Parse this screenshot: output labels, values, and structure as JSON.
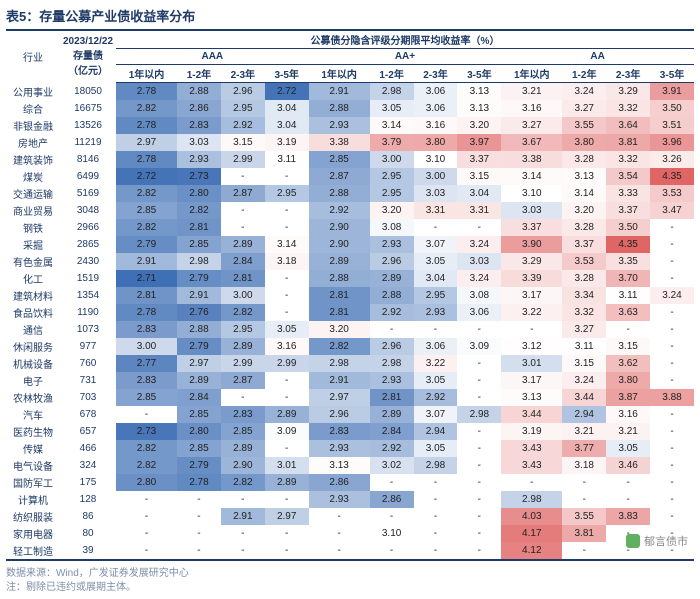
{
  "title": "表5：存量公募产业债收益率分布",
  "header": {
    "industry": "行业",
    "amount_line1": "2023/12/22",
    "amount_line2": "存量债",
    "amount_line3": "（亿元）",
    "main": "公募债分隐含评级分期限平均收益率（%）",
    "groups": [
      "AAA",
      "AA+",
      "AA"
    ],
    "periods": [
      "1年以内",
      "1-2年",
      "2-3年",
      "3-5年"
    ]
  },
  "rows": [
    {
      "ind": "公用事业",
      "amt": "18050",
      "v": [
        "2.78",
        "2.88",
        "2.96",
        "2.72",
        "2.91",
        "2.98",
        "3.06",
        "3.13",
        "3.21",
        "3.24",
        "3.29",
        "3.91"
      ]
    },
    {
      "ind": "综合",
      "amt": "16675",
      "v": [
        "2.82",
        "2.86",
        "2.95",
        "3.04",
        "2.88",
        "3.05",
        "3.06",
        "3.13",
        "3.16",
        "3.27",
        "3.32",
        "3.50"
      ]
    },
    {
      "ind": "非银金融",
      "amt": "13526",
      "v": [
        "2.78",
        "2.83",
        "2.92",
        "3.04",
        "2.93",
        "3.14",
        "3.16",
        "3.20",
        "3.27",
        "3.55",
        "3.64",
        "3.51"
      ]
    },
    {
      "ind": "房地产",
      "amt": "11219",
      "v": [
        "2.97",
        "3.03",
        "3.15",
        "3.19",
        "3.38",
        "3.79",
        "3.80",
        "3.97",
        "3.67",
        "3.80",
        "3.81",
        "3.96"
      ]
    },
    {
      "ind": "建筑装饰",
      "amt": "8146",
      "v": [
        "2.78",
        "2.93",
        "2.99",
        "3.11",
        "2.85",
        "3.00",
        "3.10",
        "3.37",
        "3.38",
        "3.28",
        "3.32",
        "3.26"
      ]
    },
    {
      "ind": "煤炭",
      "amt": "6499",
      "v": [
        "2.72",
        "2.73",
        "-",
        "-",
        "2.87",
        "2.95",
        "3.00",
        "3.15",
        "3.14",
        "3.13",
        "3.54",
        "4.35"
      ]
    },
    {
      "ind": "交通运输",
      "amt": "5169",
      "v": [
        "2.82",
        "2.80",
        "2.87",
        "2.95",
        "2.88",
        "2.95",
        "3.03",
        "3.04",
        "3.10",
        "3.14",
        "3.33",
        "3.53"
      ]
    },
    {
      "ind": "商业贸易",
      "amt": "3048",
      "v": [
        "2.85",
        "2.82",
        "-",
        "-",
        "2.92",
        "3.20",
        "3.31",
        "3.31",
        "3.03",
        "3.20",
        "3.37",
        "3.47"
      ]
    },
    {
      "ind": "钢铁",
      "amt": "2966",
      "v": [
        "2.82",
        "2.81",
        "-",
        "-",
        "2.90",
        "3.08",
        "-",
        "-",
        "3.37",
        "3.28",
        "3.50",
        "-"
      ]
    },
    {
      "ind": "采掘",
      "amt": "2865",
      "v": [
        "2.79",
        "2.85",
        "2.89",
        "3.14",
        "2.90",
        "2.93",
        "3.07",
        "3.24",
        "3.90",
        "3.37",
        "4.35",
        "-"
      ]
    },
    {
      "ind": "有色金属",
      "amt": "2430",
      "v": [
        "2.91",
        "2.98",
        "2.84",
        "3.18",
        "2.89",
        "2.96",
        "3.05",
        "3.03",
        "3.29",
        "3.53",
        "3.35",
        "-"
      ]
    },
    {
      "ind": "化工",
      "amt": "1519",
      "v": [
        "2.71",
        "2.79",
        "2.81",
        "-",
        "2.88",
        "2.89",
        "3.04",
        "3.24",
        "3.39",
        "3.28",
        "3.70",
        "-"
      ]
    },
    {
      "ind": "建筑材料",
      "amt": "1354",
      "v": [
        "2.81",
        "2.91",
        "3.00",
        "-",
        "2.81",
        "2.88",
        "2.95",
        "3.08",
        "3.17",
        "3.34",
        "3.11",
        "3.24"
      ]
    },
    {
      "ind": "食品饮料",
      "amt": "1190",
      "v": [
        "2.78",
        "2.76",
        "2.82",
        "-",
        "2.81",
        "2.92",
        "2.93",
        "3.06",
        "3.22",
        "3.32",
        "3.63",
        "-"
      ]
    },
    {
      "ind": "通信",
      "amt": "1073",
      "v": [
        "2.83",
        "2.88",
        "2.95",
        "3.05",
        "3.20",
        "-",
        "-",
        "-",
        "-",
        "3.27",
        "-",
        "-"
      ]
    },
    {
      "ind": "休闲服务",
      "amt": "977",
      "v": [
        "3.00",
        "2.79",
        "2.89",
        "3.16",
        "2.82",
        "2.96",
        "3.06",
        "3.09",
        "3.12",
        "3.11",
        "3.15",
        "-"
      ]
    },
    {
      "ind": "机械设备",
      "amt": "760",
      "v": [
        "2.77",
        "2.97",
        "2.99",
        "2.99",
        "2.98",
        "2.98",
        "3.22",
        "-",
        "3.01",
        "3.15",
        "3.62",
        "-"
      ]
    },
    {
      "ind": "电子",
      "amt": "731",
      "v": [
        "2.83",
        "2.89",
        "2.87",
        "-",
        "2.91",
        "2.93",
        "3.05",
        "-",
        "3.17",
        "3.24",
        "3.80",
        "-"
      ]
    },
    {
      "ind": "农林牧渔",
      "amt": "703",
      "v": [
        "2.85",
        "2.84",
        "-",
        "-",
        "2.97",
        "2.81",
        "2.92",
        "-",
        "3.13",
        "3.44",
        "3.87",
        "3.88"
      ]
    },
    {
      "ind": "汽车",
      "amt": "678",
      "v": [
        "-",
        "2.85",
        "2.83",
        "2.89",
        "2.96",
        "2.89",
        "3.07",
        "2.98",
        "3.44",
        "2.94",
        "3.16",
        "-"
      ]
    },
    {
      "ind": "医药生物",
      "amt": "657",
      "v": [
        "2.73",
        "2.80",
        "2.85",
        "3.09",
        "2.83",
        "2.84",
        "2.94",
        "-",
        "3.19",
        "3.21",
        "3.21",
        "-"
      ]
    },
    {
      "ind": "传媒",
      "amt": "466",
      "v": [
        "2.82",
        "2.85",
        "2.89",
        "-",
        "2.93",
        "2.92",
        "3.05",
        "-",
        "3.43",
        "3.77",
        "3.05",
        "-"
      ]
    },
    {
      "ind": "电气设备",
      "amt": "324",
      "v": [
        "2.82",
        "2.79",
        "2.90",
        "3.01",
        "3.13",
        "3.02",
        "2.98",
        "-",
        "3.43",
        "3.18",
        "3.46",
        "-"
      ]
    },
    {
      "ind": "国防军工",
      "amt": "175",
      "v": [
        "2.80",
        "2.78",
        "2.82",
        "2.89",
        "2.86",
        "-",
        "-",
        "-",
        "-",
        "-",
        "-",
        "-"
      ]
    },
    {
      "ind": "计算机",
      "amt": "128",
      "v": [
        "-",
        "-",
        "-",
        "-",
        "2.93",
        "2.86",
        "-",
        "-",
        "2.98",
        "-",
        "-",
        "-"
      ]
    },
    {
      "ind": "纺织服装",
      "amt": "86",
      "v": [
        "-",
        "-",
        "2.91",
        "2.97",
        "-",
        "-",
        "-",
        "-",
        "4.03",
        "3.55",
        "3.83",
        "-"
      ]
    },
    {
      "ind": "家用电器",
      "amt": "80",
      "v": [
        "-",
        "-",
        "-",
        "-",
        "-",
        "3.10",
        "-",
        "-",
        "4.17",
        "3.81",
        "-",
        "-"
      ]
    },
    {
      "ind": "轻工制造",
      "amt": "39",
      "v": [
        "-",
        "-",
        "-",
        "-",
        "-",
        "-",
        "-",
        "-",
        "4.12",
        "-",
        "-",
        "-"
      ]
    }
  ],
  "source_line1": "数据来源：Wind，广发证券发展研究中心",
  "source_line2": "注：剔除已违约或展期主体。",
  "watermark": "郁言债市",
  "style": {
    "color_scale": {
      "min": 2.71,
      "mid": 3.1,
      "max": 4.35,
      "low_color": "#3f6fb5",
      "mid_color": "#ffffff",
      "high_color": "#e06666"
    },
    "header_color": "#1e3a66",
    "text_color": "#222222",
    "source_color": "#7b8fa8",
    "title_fontsize": 13,
    "cell_fontsize": 10
  }
}
